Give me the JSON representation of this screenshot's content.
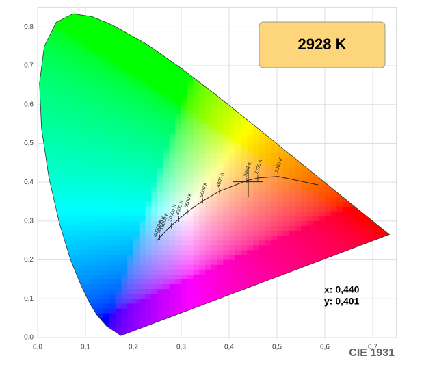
{
  "chart_data": {
    "type": "chromaticity",
    "badge": "2928 K",
    "label": "CIE 1931",
    "xlim": [
      0,
      0.75
    ],
    "ylim": [
      0,
      0.85
    ],
    "xticks": [
      {
        "value": 0,
        "label": "0,0"
      },
      {
        "value": 0.1,
        "label": "0,1"
      },
      {
        "value": 0.2,
        "label": "0,2"
      },
      {
        "value": 0.3,
        "label": "0,3"
      },
      {
        "value": 0.4,
        "label": "0,4"
      },
      {
        "value": 0.5,
        "label": "0,5"
      },
      {
        "value": 0.6,
        "label": "0,6"
      },
      {
        "value": 0.7,
        "label": "0,7"
      }
    ],
    "yticks": [
      {
        "value": 0,
        "label": "0,0"
      },
      {
        "value": 0.1,
        "label": "0,1"
      },
      {
        "value": 0.2,
        "label": "0,2"
      },
      {
        "value": 0.3,
        "label": "0,3"
      },
      {
        "value": 0.4,
        "label": "0,4"
      },
      {
        "value": 0.5,
        "label": "0,5"
      },
      {
        "value": 0.6,
        "label": "0,6"
      },
      {
        "value": 0.7,
        "label": "0,7"
      },
      {
        "value": 0.8,
        "label": "0,8"
      }
    ],
    "grid": true,
    "spectral_locus": {
      "x": [
        0.1741,
        0.144,
        0.1241,
        0.1096,
        0.0913,
        0.0687,
        0.0454,
        0.0235,
        0.0082,
        0.0039,
        0.0139,
        0.0389,
        0.0743,
        0.1142,
        0.1547,
        0.2296,
        0.3016,
        0.3731,
        0.4441,
        0.5125,
        0.5752,
        0.627,
        0.6915,
        0.7347
      ],
      "y": [
        0.005,
        0.0297,
        0.0578,
        0.0868,
        0.1327,
        0.2007,
        0.295,
        0.4127,
        0.5384,
        0.6548,
        0.7502,
        0.812,
        0.8338,
        0.8262,
        0.8059,
        0.7543,
        0.6923,
        0.6245,
        0.5547,
        0.4866,
        0.4242,
        0.3725,
        0.3083,
        0.2653
      ]
    },
    "planckian_locus": {
      "x": [
        0.586,
        0.502,
        0.46,
        0.437,
        0.38,
        0.345,
        0.313,
        0.295,
        0.279,
        0.262,
        0.255,
        0.249
      ],
      "y": [
        0.393,
        0.415,
        0.411,
        0.404,
        0.377,
        0.352,
        0.324,
        0.305,
        0.288,
        0.267,
        0.258,
        0.249
      ],
      "labels": [
        null,
        "2200 K",
        "2700 K",
        "3000 K",
        "4000 K",
        "5000 K",
        "6500 K",
        "8000 K",
        "10000 K",
        "15000 K",
        "20000 K",
        "40000 K"
      ]
    },
    "point": {
      "x": 0.44,
      "y": 0.401,
      "value_labels": [
        "x: 0,440",
        "y: 0,401"
      ]
    }
  }
}
